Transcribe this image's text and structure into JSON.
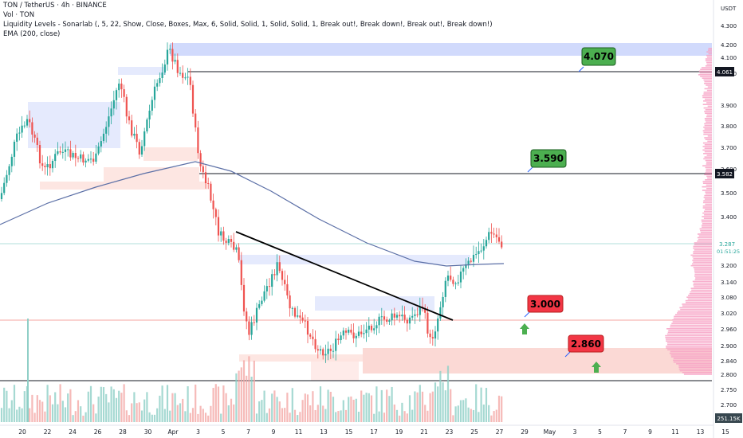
{
  "header": {
    "line1": "TON / TetherUS · 4h · BINANCE",
    "line2": "Vol · TON",
    "line3": "Liquidity Levels - Sonarlab (, 5, 22, Show, Close, Boxes, Max, 6, Solid, Solid, 1, Solid, Solid, 1, Break out!, Break down!, Break out!, Break down!)",
    "line4": "EMA (200, close)"
  },
  "axis": {
    "currency": "USDT",
    "price_ticks": [
      "4.300",
      "4.200",
      "4.100",
      "4.000",
      "3.900",
      "3.800",
      "3.700",
      "3.600",
      "3.500",
      "3.400",
      "3.300",
      "3.200",
      "3.140",
      "3.080",
      "3.020",
      "2.960",
      "2.900",
      "2.840",
      "2.800",
      "2.750",
      "2.700",
      "2.650"
    ],
    "date_ticks": [
      "20",
      "22",
      "24",
      "26",
      "28",
      "30",
      "Apr",
      "3",
      "5",
      "7",
      "9",
      "11",
      "13",
      "15",
      "17",
      "19",
      "21",
      "23",
      "25",
      "27",
      "29",
      "May",
      "3",
      "5",
      "7",
      "9",
      "11",
      "13",
      "15"
    ]
  },
  "price_badges": {
    "level_4061": "4.061",
    "level_3582": "3.582",
    "current_price": "3.287",
    "countdown": "01:51:25",
    "volume": "251.15K"
  },
  "callouts": [
    {
      "label": "4.070",
      "color": "#4caf50"
    },
    {
      "label": "3.590",
      "color": "#4caf50"
    },
    {
      "label": "3.000",
      "color": "#f23645"
    },
    {
      "label": "2.860",
      "color": "#f23645"
    }
  ],
  "colors": {
    "up": "#26a69a",
    "down": "#ef5350",
    "ema": "#5b6fa6",
    "supply_box": "#c9d3fb",
    "demand_box": "#fbd7d3",
    "volume_profile": "#f7a1c4"
  },
  "chart_data": {
    "type": "candlestick",
    "symbol": "TON / TetherUS",
    "timeframe": "4h",
    "exchange": "BINANCE",
    "ylim": [
      2.62,
      4.3
    ],
    "levels": [
      {
        "price": 4.061,
        "label": "4.061"
      },
      {
        "price": 3.582,
        "label": "3.582"
      },
      {
        "price": 3.0,
        "label": "3.000"
      },
      {
        "price": 2.78,
        "label": ""
      }
    ],
    "zones": [
      {
        "from": 4.13,
        "to": 4.2,
        "kind": "supply"
      },
      {
        "from": 2.82,
        "to": 2.895,
        "kind": "demand"
      }
    ],
    "targets": [
      4.07,
      3.59,
      3.0,
      2.86
    ],
    "trendline": {
      "from": [
        "Apr 6",
        3.33
      ],
      "to": [
        "Apr 23",
        3.0
      ]
    },
    "ema_200_samples": [
      3.4,
      3.5,
      3.61,
      3.55,
      3.35,
      3.22,
      3.21,
      3.2
    ],
    "last_close": 3.287
  }
}
